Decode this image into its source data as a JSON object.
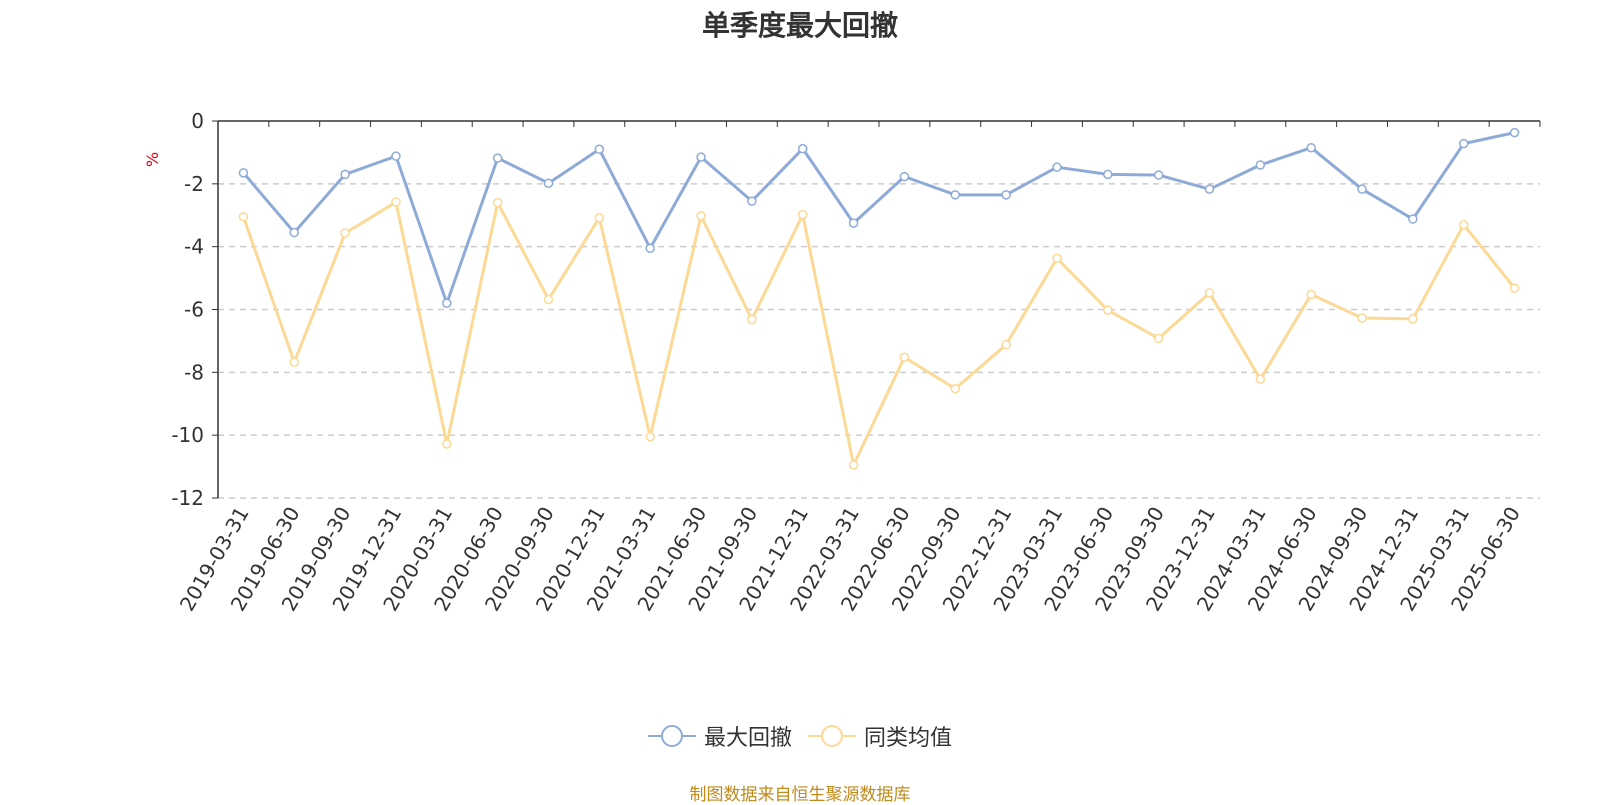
{
  "title": "单季度最大回撤",
  "footer": "制图数据来自恒生聚源数据库",
  "colors": {
    "series1": "#8eaad8",
    "series2": "#fcd995",
    "axis": "#333333",
    "grid": "#cccccc",
    "unit": "#e0001b",
    "footer": "#c28a1a"
  },
  "chart_data": {
    "type": "line",
    "ylabel": "%",
    "ylim": [
      -12,
      0
    ],
    "yticks": [
      0,
      -2,
      -4,
      -6,
      -8,
      -10,
      -12
    ],
    "grid": "dashed horizontal",
    "legend_position": "bottom",
    "categories": [
      "2019-03-31",
      "2019-06-30",
      "2019-09-30",
      "2019-12-31",
      "2020-03-31",
      "2020-06-30",
      "2020-09-30",
      "2020-12-31",
      "2021-03-31",
      "2021-06-30",
      "2021-09-30",
      "2021-12-31",
      "2022-03-31",
      "2022-06-30",
      "2022-09-30",
      "2022-12-31",
      "2023-03-31",
      "2023-06-30",
      "2023-09-30",
      "2023-12-31",
      "2024-03-31",
      "2024-06-30",
      "2024-09-30",
      "2024-12-31",
      "2025-03-31",
      "2025-06-30"
    ],
    "series": [
      {
        "name": "最大回撤",
        "values": [
          -1.65,
          -3.55,
          -1.7,
          -1.12,
          -5.8,
          -1.18,
          -1.98,
          -0.9,
          -4.05,
          -1.15,
          -2.55,
          -0.88,
          -3.25,
          -1.77,
          -2.35,
          -2.35,
          -1.47,
          -1.7,
          -1.72,
          -2.17,
          -1.4,
          -0.85,
          -2.17,
          -3.12,
          -0.72,
          -0.37
        ]
      },
      {
        "name": "同类均值",
        "values": [
          -3.05,
          -7.68,
          -3.57,
          -2.58,
          -10.28,
          -2.6,
          -5.68,
          -3.08,
          -10.05,
          -3.02,
          -6.32,
          -2.98,
          -10.95,
          -7.52,
          -8.52,
          -7.12,
          -4.37,
          -6.02,
          -6.92,
          -5.47,
          -8.22,
          -5.52,
          -6.27,
          -6.3,
          -3.3,
          -5.32
        ]
      }
    ]
  }
}
